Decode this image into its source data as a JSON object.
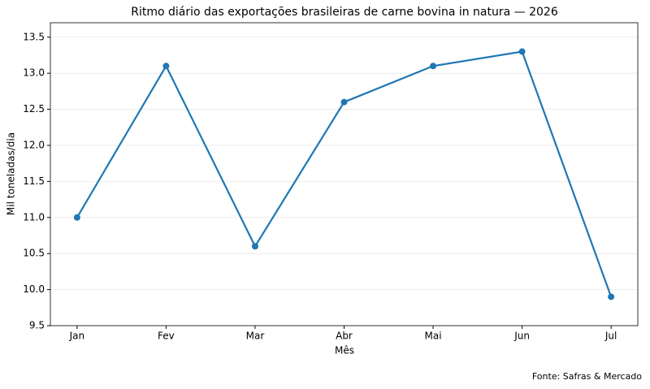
{
  "chart_data": {
    "type": "line",
    "title": "Ritmo diário das exportações brasileiras de carne bovina in natura — 2026",
    "x_label": "Mês",
    "y_label": "Mil toneladas/dia",
    "annotation": "Fonte: Safras & Mercado",
    "categories": [
      "Jan",
      "Fev",
      "Mar",
      "Abr",
      "Mai",
      "Jun",
      "Jul"
    ],
    "values": [
      11.0,
      13.1,
      10.6,
      12.6,
      13.1,
      13.3,
      9.9
    ],
    "color": "#1f77b4",
    "ylim": [
      9.5,
      13.7
    ],
    "yticks": [
      9.5,
      {
        "value": 10,
        "label": "10.0"
      },
      10.5,
      {
        "value": 11,
        "label": "11.0"
      },
      11.5,
      {
        "value": 12,
        "label": "12.0"
      },
      12.5,
      {
        "value": 13,
        "label": "13.0"
      },
      13.5
    ],
    "grid": true
  }
}
